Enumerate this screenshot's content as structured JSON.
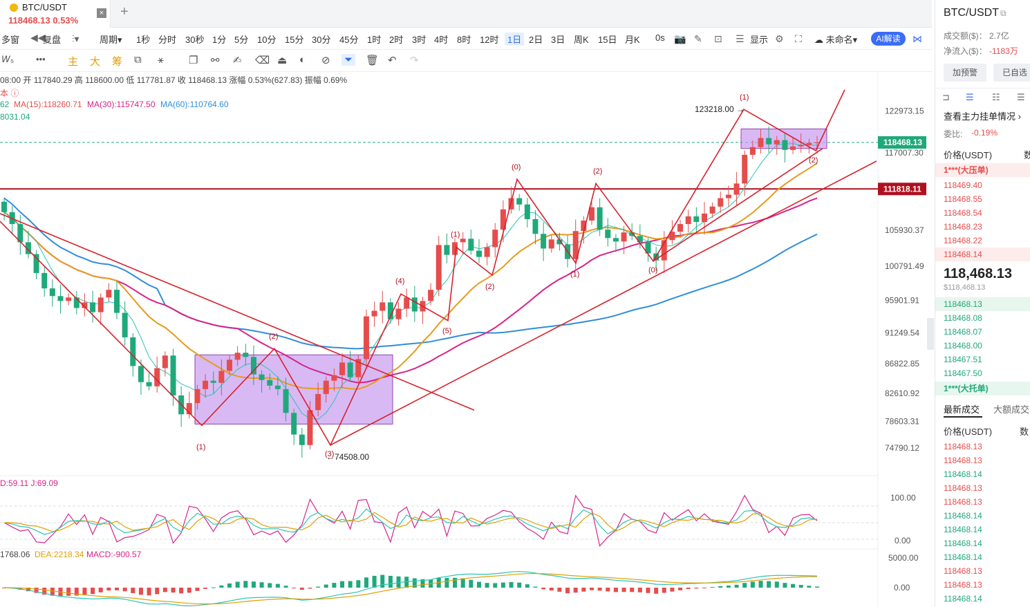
{
  "tab": {
    "symbol": "BTC/USDT",
    "price": "118468.13",
    "change": "0.53%",
    "close": "×",
    "add": "+"
  },
  "toolbar1": {
    "items": [
      "多窗",
      "复盘",
      "周期",
      "1秒",
      "分时",
      "30秒",
      "1分",
      "5分",
      "10分",
      "15分",
      "30分",
      "45分",
      "1时",
      "2时",
      "3时",
      "4时",
      "8时",
      "12时",
      "1日",
      "2日",
      "3日",
      "周K",
      "15日",
      "月K",
      "0s",
      "显示",
      "未命名",
      "AI解读"
    ],
    "active": "1日"
  },
  "toolbar2": {
    "indicators": [
      "主",
      "大",
      "筹"
    ]
  },
  "info": {
    "ohlc": "08:00  开 117840.29  高 118600.00  低 117781.87  收 118468.13  涨幅 0.53%(627.83)  振幅 0.69%",
    "subline": "本 ⓘ",
    "ma_a": "62",
    "ma15": "MA(15):118260.71",
    "ma30": "MA(30):115747.50",
    "ma60": "MA(60):110764.60",
    "line3": "8031.04",
    "kdj": "D:59.11  J:69.09",
    "macd_a": "1768.06",
    "macd_dea": "DEA:2218.34",
    "macd_val": "MACD:-900.57"
  },
  "chart_data": {
    "type": "line",
    "title": "BTC/USDT 1日",
    "y_ticks": [
      "122973.15",
      "117007.30",
      "105930.37",
      "100791.49",
      "95901.91",
      "91249.54",
      "86822.85",
      "82610.92",
      "78603.31",
      "74790.12"
    ],
    "price_label": "118468.13",
    "level_label": "111818.11",
    "annotations": [
      "123218.00",
      "74508.00",
      "(1)",
      "(2)",
      "(3)",
      "(4)",
      "(5)",
      "(0)"
    ],
    "kdj_ticks": [
      "100.00",
      "0.00"
    ],
    "macd_ticks": [
      "5000.00",
      "0.00"
    ],
    "series": [
      {
        "name": "close",
        "values": [
          108500,
          106800,
          104200,
          102500,
          99800,
          97600,
          96500,
          95800,
          96300,
          94800,
          95600,
          94200,
          96300,
          97400,
          94100,
          90600,
          86500,
          84200,
          83600,
          86200,
          88000,
          82300,
          79600,
          81200,
          83200,
          84400,
          84100,
          85800,
          87400,
          88400,
          87800,
          85300,
          84500,
          83700,
          83200,
          79800,
          76700,
          75200,
          80200,
          82500,
          84400,
          85200,
          87000,
          84900,
          87500,
          93600,
          94400,
          95600,
          93200,
          94700,
          96300,
          94300,
          95800,
          97400,
          103800,
          102400,
          104200,
          104700,
          103000,
          102100,
          103500,
          106000,
          108900,
          110500,
          109600,
          107500,
          105400,
          103300,
          104600,
          103900,
          101800,
          105800,
          107300,
          109200,
          106000,
          104800,
          104300,
          105600,
          105100,
          104200,
          102600,
          101600,
          104500,
          105700,
          106800,
          107900,
          107100,
          108300,
          109300,
          110500,
          111000,
          112600,
          116700,
          117800,
          119100,
          118200,
          118800,
          117400,
          117900,
          118100,
          118400,
          118468
        ]
      }
    ]
  },
  "rpanel": {
    "title": "BTC/USDT",
    "vol_label": "成交额($)：",
    "vol_value": "2.7亿",
    "inflow_label": "净流入($)：",
    "inflow_value": "-1183万",
    "alert_btn": "加预警",
    "fav_btn": "已自选",
    "depth_link": "查看主力挂单情况",
    "ratio_label": "委比:",
    "ratio_value": "-0.19%",
    "price_col": "价格(USDT)",
    "qty_col": "数",
    "big_sell": "1***(大压单)",
    "asks": [
      "118469.40",
      "118468.55",
      "118468.54",
      "118468.23",
      "118468.22",
      "118468.14"
    ],
    "last_price": "118,468.13",
    "last_usd": "$118,468.13",
    "bids": [
      "118468.13",
      "118468.08",
      "118468.07",
      "118468.00",
      "118467.51",
      "118467.50"
    ],
    "big_buy": "1***(大托单)",
    "trades_tab": "最新成交",
    "big_trades_tab": "大额成交",
    "trades": [
      "118468.13",
      "118468.13",
      "118468.14",
      "118468.13",
      "118468.13",
      "118468.14",
      "118468.14",
      "118468.14",
      "118468.14",
      "118468.13",
      "118468.13",
      "118468.14"
    ],
    "trade_colors": [
      "red",
      "red",
      "green",
      "red",
      "red",
      "green",
      "green",
      "green",
      "green",
      "red",
      "red",
      "green"
    ]
  },
  "colors": {
    "up": "#e54d4d",
    "down": "#1fa97a",
    "accent": "#3a6cf6",
    "box": "#c89bf0"
  }
}
